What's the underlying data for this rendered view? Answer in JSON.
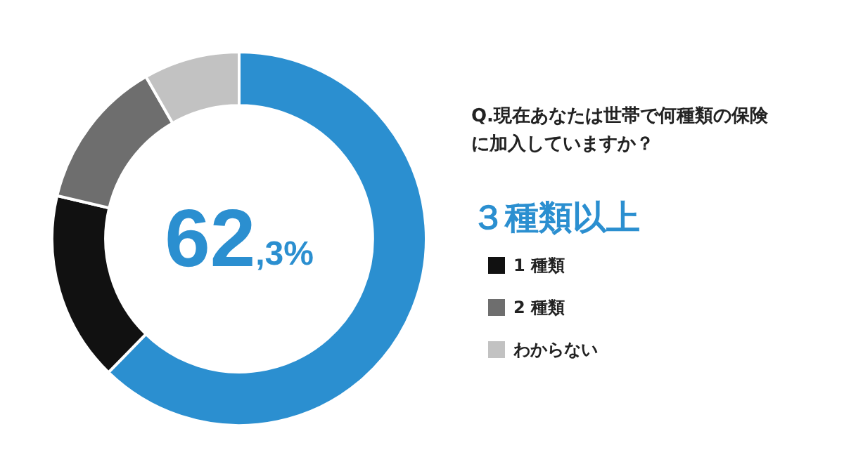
{
  "chart_data": {
    "type": "donut",
    "title": "Q.現在あなたは世帯で何種類の保険に加入していますか？",
    "categories": [
      "３種類以上",
      "1 種類",
      "2 種類",
      "わからない"
    ],
    "values": [
      62.3,
      16.4,
      13.0,
      8.3
    ],
    "colors": [
      "#2b8fd0",
      "#111111",
      "#6e6e6e",
      "#c2c2c2"
    ],
    "value_labels": [
      "62,3%",
      null,
      null,
      null
    ],
    "legend": "right"
  }
}
